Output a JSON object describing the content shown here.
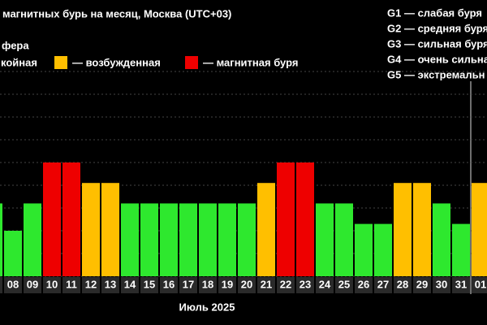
{
  "chart_data": {
    "type": "bar",
    "title": "магнитных бурь на месяц, Москва (UTC+03)",
    "subtitle": "фера",
    "x_label": "Июль 2025",
    "legend": [
      {
        "label": "койная",
        "color": "#2ee82e"
      },
      {
        "label": "— возбужденная",
        "color": "#ffbf00"
      },
      {
        "label": "— магнитная буря",
        "color": "#ee0000"
      }
    ],
    "scale_notes": [
      "G1 — слабая буря",
      "G2 — средняя буря",
      "G3 — сильная буря",
      "G4 — очень сильна",
      "G5 — экстремальн"
    ],
    "categories": [
      null,
      "08",
      "09",
      "10",
      "11",
      "12",
      "13",
      "14",
      "15",
      "16",
      "17",
      "18",
      "19",
      "20",
      "21",
      "22",
      "23",
      "24",
      "25",
      "26",
      "27",
      "28",
      "29",
      "30",
      "31",
      "01"
    ],
    "values": [
      3.2,
      2,
      3.2,
      5,
      5,
      4.1,
      4.1,
      3.2,
      3.2,
      3.2,
      3.2,
      3.2,
      3.2,
      3.2,
      4.1,
      5,
      5,
      3.2,
      3.2,
      2.3,
      2.3,
      4.1,
      4.1,
      3.2,
      2.3,
      4.1
    ],
    "colors": [
      "#2ee82e",
      "#2ee82e",
      "#2ee82e",
      "#ee0000",
      "#ee0000",
      "#ffbf00",
      "#ffbf00",
      "#2ee82e",
      "#2ee82e",
      "#2ee82e",
      "#2ee82e",
      "#2ee82e",
      "#2ee82e",
      "#2ee82e",
      "#ffbf00",
      "#ee0000",
      "#ee0000",
      "#2ee82e",
      "#2ee82e",
      "#2ee82e",
      "#2ee82e",
      "#ffbf00",
      "#ffbf00",
      "#2ee82e",
      "#2ee82e",
      "#ffbf00"
    ],
    "ylim": [
      0,
      9
    ],
    "yticks": [
      0,
      1,
      2,
      3,
      4,
      5,
      6,
      7,
      8,
      9
    ],
    "grid": true
  }
}
